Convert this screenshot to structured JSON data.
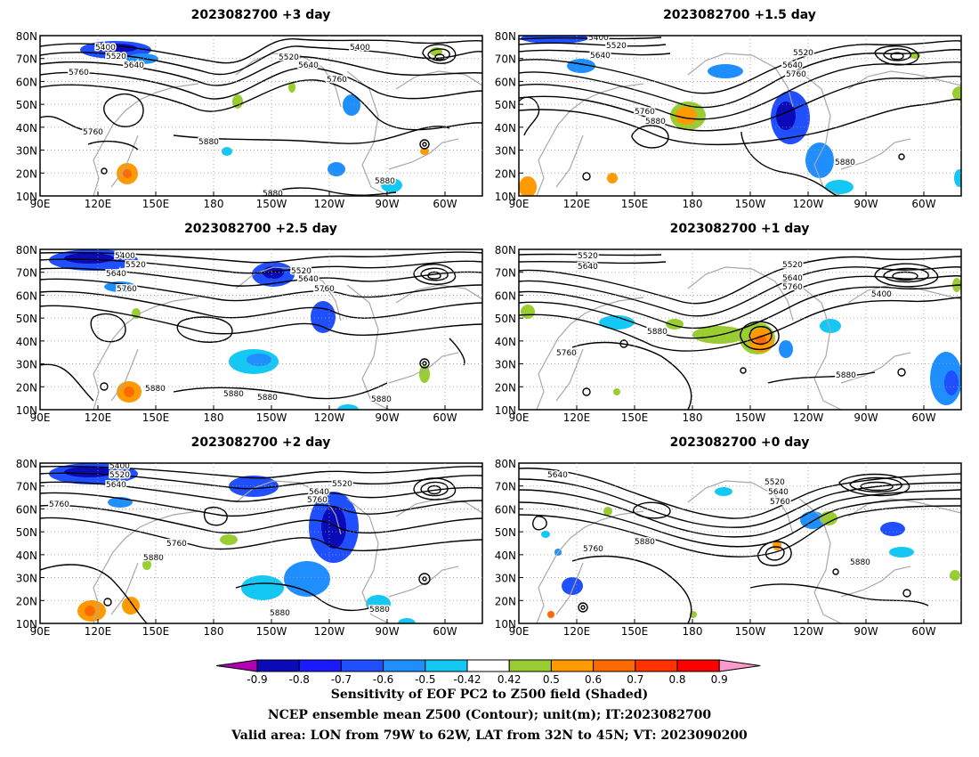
{
  "panels": [
    {
      "title": "2023082700  +3 day",
      "labels": [
        "5400",
        "5520",
        "5640",
        "5760",
        "5400",
        "5520",
        "5640",
        "5760",
        "5760",
        "5880",
        "5880",
        "5880"
      ]
    },
    {
      "title": "2023082700  +1.5 day",
      "labels": [
        "5400",
        "5520",
        "5640",
        "5520",
        "5640",
        "5760",
        "5760",
        "5880",
        "5880"
      ]
    },
    {
      "title": "2023082700  +2.5 day",
      "labels": [
        "5400",
        "5520",
        "5640",
        "5760",
        "5520",
        "5640",
        "5760",
        "5880",
        "5880",
        "5880",
        "5880"
      ]
    },
    {
      "title": "2023082700  +1 day",
      "labels": [
        "5520",
        "5640",
        "5520",
        "5640",
        "5760",
        "5400",
        "5880",
        "5760",
        "5880"
      ]
    },
    {
      "title": "2023082700  +2 day",
      "labels": [
        "5400",
        "5520",
        "5640",
        "5760",
        "5520",
        "5640",
        "5760",
        "5760",
        "5880",
        "5880",
        "5880"
      ]
    },
    {
      "title": "2023082700  +0 day",
      "labels": [
        "5640",
        "5520",
        "5640",
        "5760",
        "5880",
        "5760",
        "5880"
      ]
    }
  ],
  "lat_ticks": [
    "80N",
    "70N",
    "60N",
    "50N",
    "40N",
    "30N",
    "20N",
    "10N"
  ],
  "lon_ticks": [
    "90E",
    "120E",
    "150E",
    "180",
    "150W",
    "120W",
    "90W",
    "60W"
  ],
  "colorbar": {
    "ticks": [
      "-0.9",
      "-0.8",
      "-0.7",
      "-0.6",
      "-0.5",
      "-0.42",
      "0.42",
      "0.5",
      "0.6",
      "0.7",
      "0.8",
      "0.9"
    ],
    "colors": [
      "#b000b0",
      "#0a0ab8",
      "#1a1aff",
      "#1f4fff",
      "#1f8fff",
      "#13c8f5",
      "#ffffff",
      "#9acd32",
      "#ff9a00",
      "#ff6a00",
      "#ff3200",
      "#ff0000",
      "#ff99cc"
    ]
  },
  "captions": {
    "line1": "Sensitivity of EOF PC2 to Z500 field (Shaded)",
    "line2": "NCEP ensemble mean Z500 (Contour); unit(m); IT:2023082700",
    "line3": "Valid area: LON from 79W to 62W, LAT from 32N to 45N; VT: 2023090200"
  }
}
